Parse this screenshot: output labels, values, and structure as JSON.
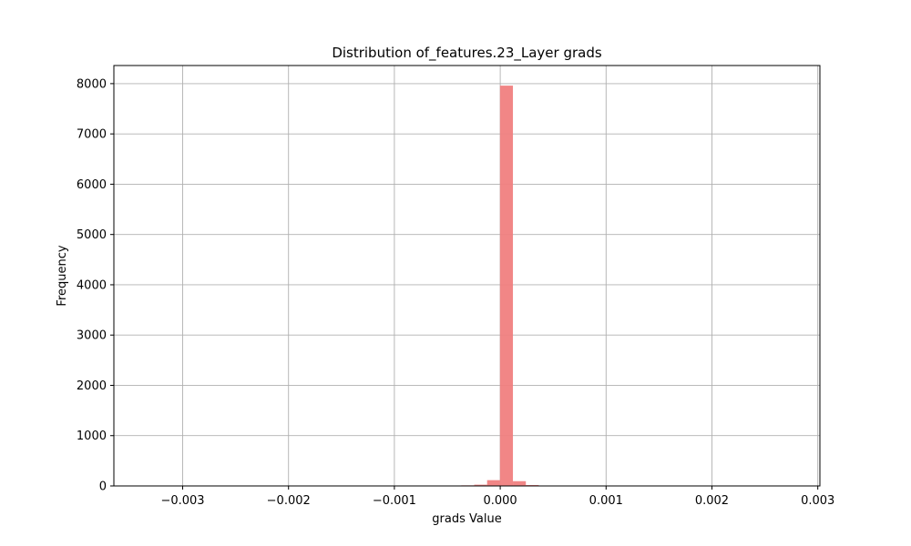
{
  "chart_data": {
    "type": "bar",
    "title": "Distribution of_features.23_Layer grads",
    "xlabel": "grads Value",
    "ylabel": "Frequency",
    "xlim": [
      -0.00365,
      0.00302
    ],
    "ylim": [
      0,
      8360
    ],
    "xticks": [
      {
        "value": -0.003,
        "label": "−0.003"
      },
      {
        "value": -0.002,
        "label": "−0.002"
      },
      {
        "value": -0.001,
        "label": "−0.001"
      },
      {
        "value": 0.0,
        "label": "0.000"
      },
      {
        "value": 0.001,
        "label": "0.001"
      },
      {
        "value": 0.002,
        "label": "0.002"
      },
      {
        "value": 0.003,
        "label": "0.003"
      }
    ],
    "yticks": [
      {
        "value": 0,
        "label": "0"
      },
      {
        "value": 1000,
        "label": "1000"
      },
      {
        "value": 2000,
        "label": "2000"
      },
      {
        "value": 3000,
        "label": "3000"
      },
      {
        "value": 4000,
        "label": "4000"
      },
      {
        "value": 5000,
        "label": "5000"
      },
      {
        "value": 6000,
        "label": "6000"
      },
      {
        "value": 7000,
        "label": "7000"
      },
      {
        "value": 8000,
        "label": "8000"
      }
    ],
    "bin_width": 0.000122,
    "bins": [
      {
        "x0": -0.00049,
        "count": 5
      },
      {
        "x0": -0.000368,
        "count": 12
      },
      {
        "x0": -0.000246,
        "count": 25
      },
      {
        "x0": -0.000124,
        "count": 115
      },
      {
        "x0": -2e-06,
        "count": 7960
      },
      {
        "x0": 0.00012,
        "count": 95
      },
      {
        "x0": 0.000242,
        "count": 18
      },
      {
        "x0": 0.000364,
        "count": 6
      }
    ],
    "grid": true,
    "colors": {
      "bar": "#f08080",
      "grid": "#b0b0b0"
    }
  }
}
